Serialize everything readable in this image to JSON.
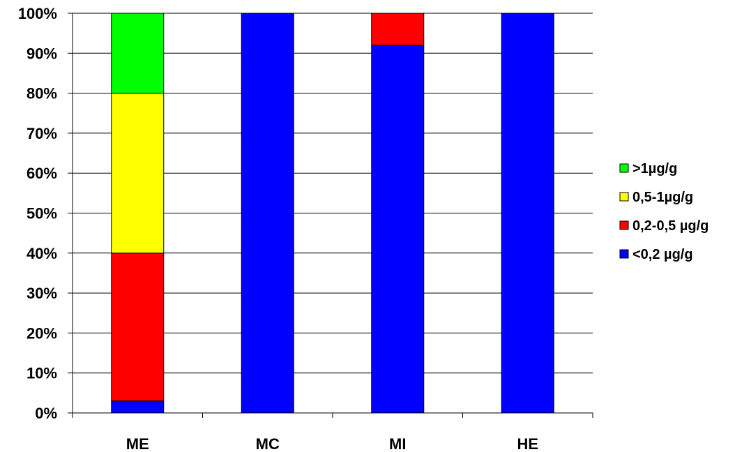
{
  "chart_data": {
    "type": "bar",
    "stacked": "percent",
    "categories": [
      "ME",
      "MC",
      "MI",
      "HE"
    ],
    "series": [
      {
        "name": "<0,2 µg/g",
        "color": "#0000FF",
        "values": [
          3,
          100,
          92,
          100
        ]
      },
      {
        "name": "0,2-0,5 µg/g",
        "color": "#FF0000",
        "values": [
          37,
          0,
          8,
          0
        ]
      },
      {
        "name": "0,5-1µg/g",
        "color": "#FFFF00",
        "values": [
          40,
          0,
          0,
          0
        ]
      },
      {
        "name": ">1µg/g",
        "color": "#00FF00",
        "values": [
          20,
          0,
          0,
          0
        ]
      }
    ],
    "yticks": [
      "0%",
      "10%",
      "20%",
      "30%",
      "40%",
      "50%",
      "60%",
      "70%",
      "80%",
      "90%",
      "100%"
    ],
    "ylim": [
      0,
      100
    ],
    "grid": true,
    "legend_position": "right",
    "legend_order": [
      ">1µg/g",
      "0,5-1µg/g",
      "0,2-0,5 µg/g",
      "<0,2 µg/g"
    ]
  }
}
